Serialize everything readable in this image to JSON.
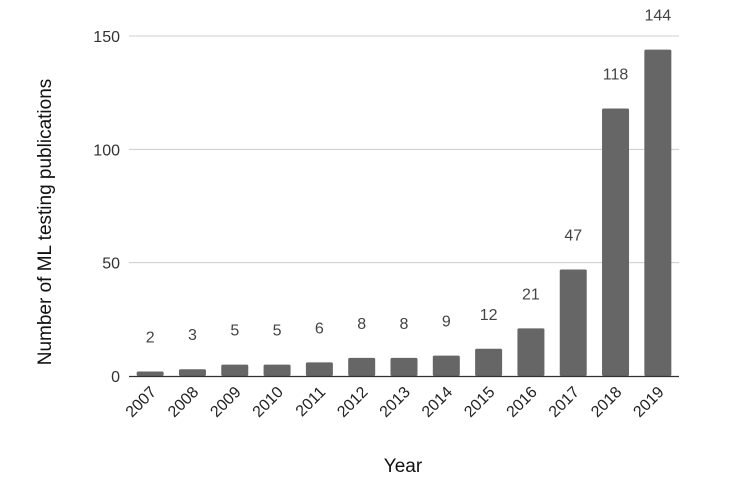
{
  "chart_data": {
    "type": "bar",
    "title": "",
    "xlabel": "Year",
    "ylabel": "Number of ML testing publications",
    "categories": [
      "2007",
      "2008",
      "2009",
      "2010",
      "2011",
      "2012",
      "2013",
      "2014",
      "2015",
      "2016",
      "2017",
      "2018",
      "2019"
    ],
    "values": [
      2,
      3,
      5,
      5,
      6,
      8,
      8,
      9,
      12,
      21,
      47,
      118,
      144
    ],
    "data_labels": [
      "2",
      "3",
      "5",
      "5",
      "6",
      "8",
      "8",
      "9",
      "12",
      "21",
      "47",
      "118",
      "144"
    ],
    "yticks": [
      0,
      50,
      100,
      150
    ],
    "ytick_labels": [
      "0",
      "50",
      "100",
      "150"
    ],
    "ylim": [
      0,
      150
    ],
    "grid": true,
    "legend": "none",
    "bar_color": "#666666",
    "grid_color": "#cccccc"
  }
}
